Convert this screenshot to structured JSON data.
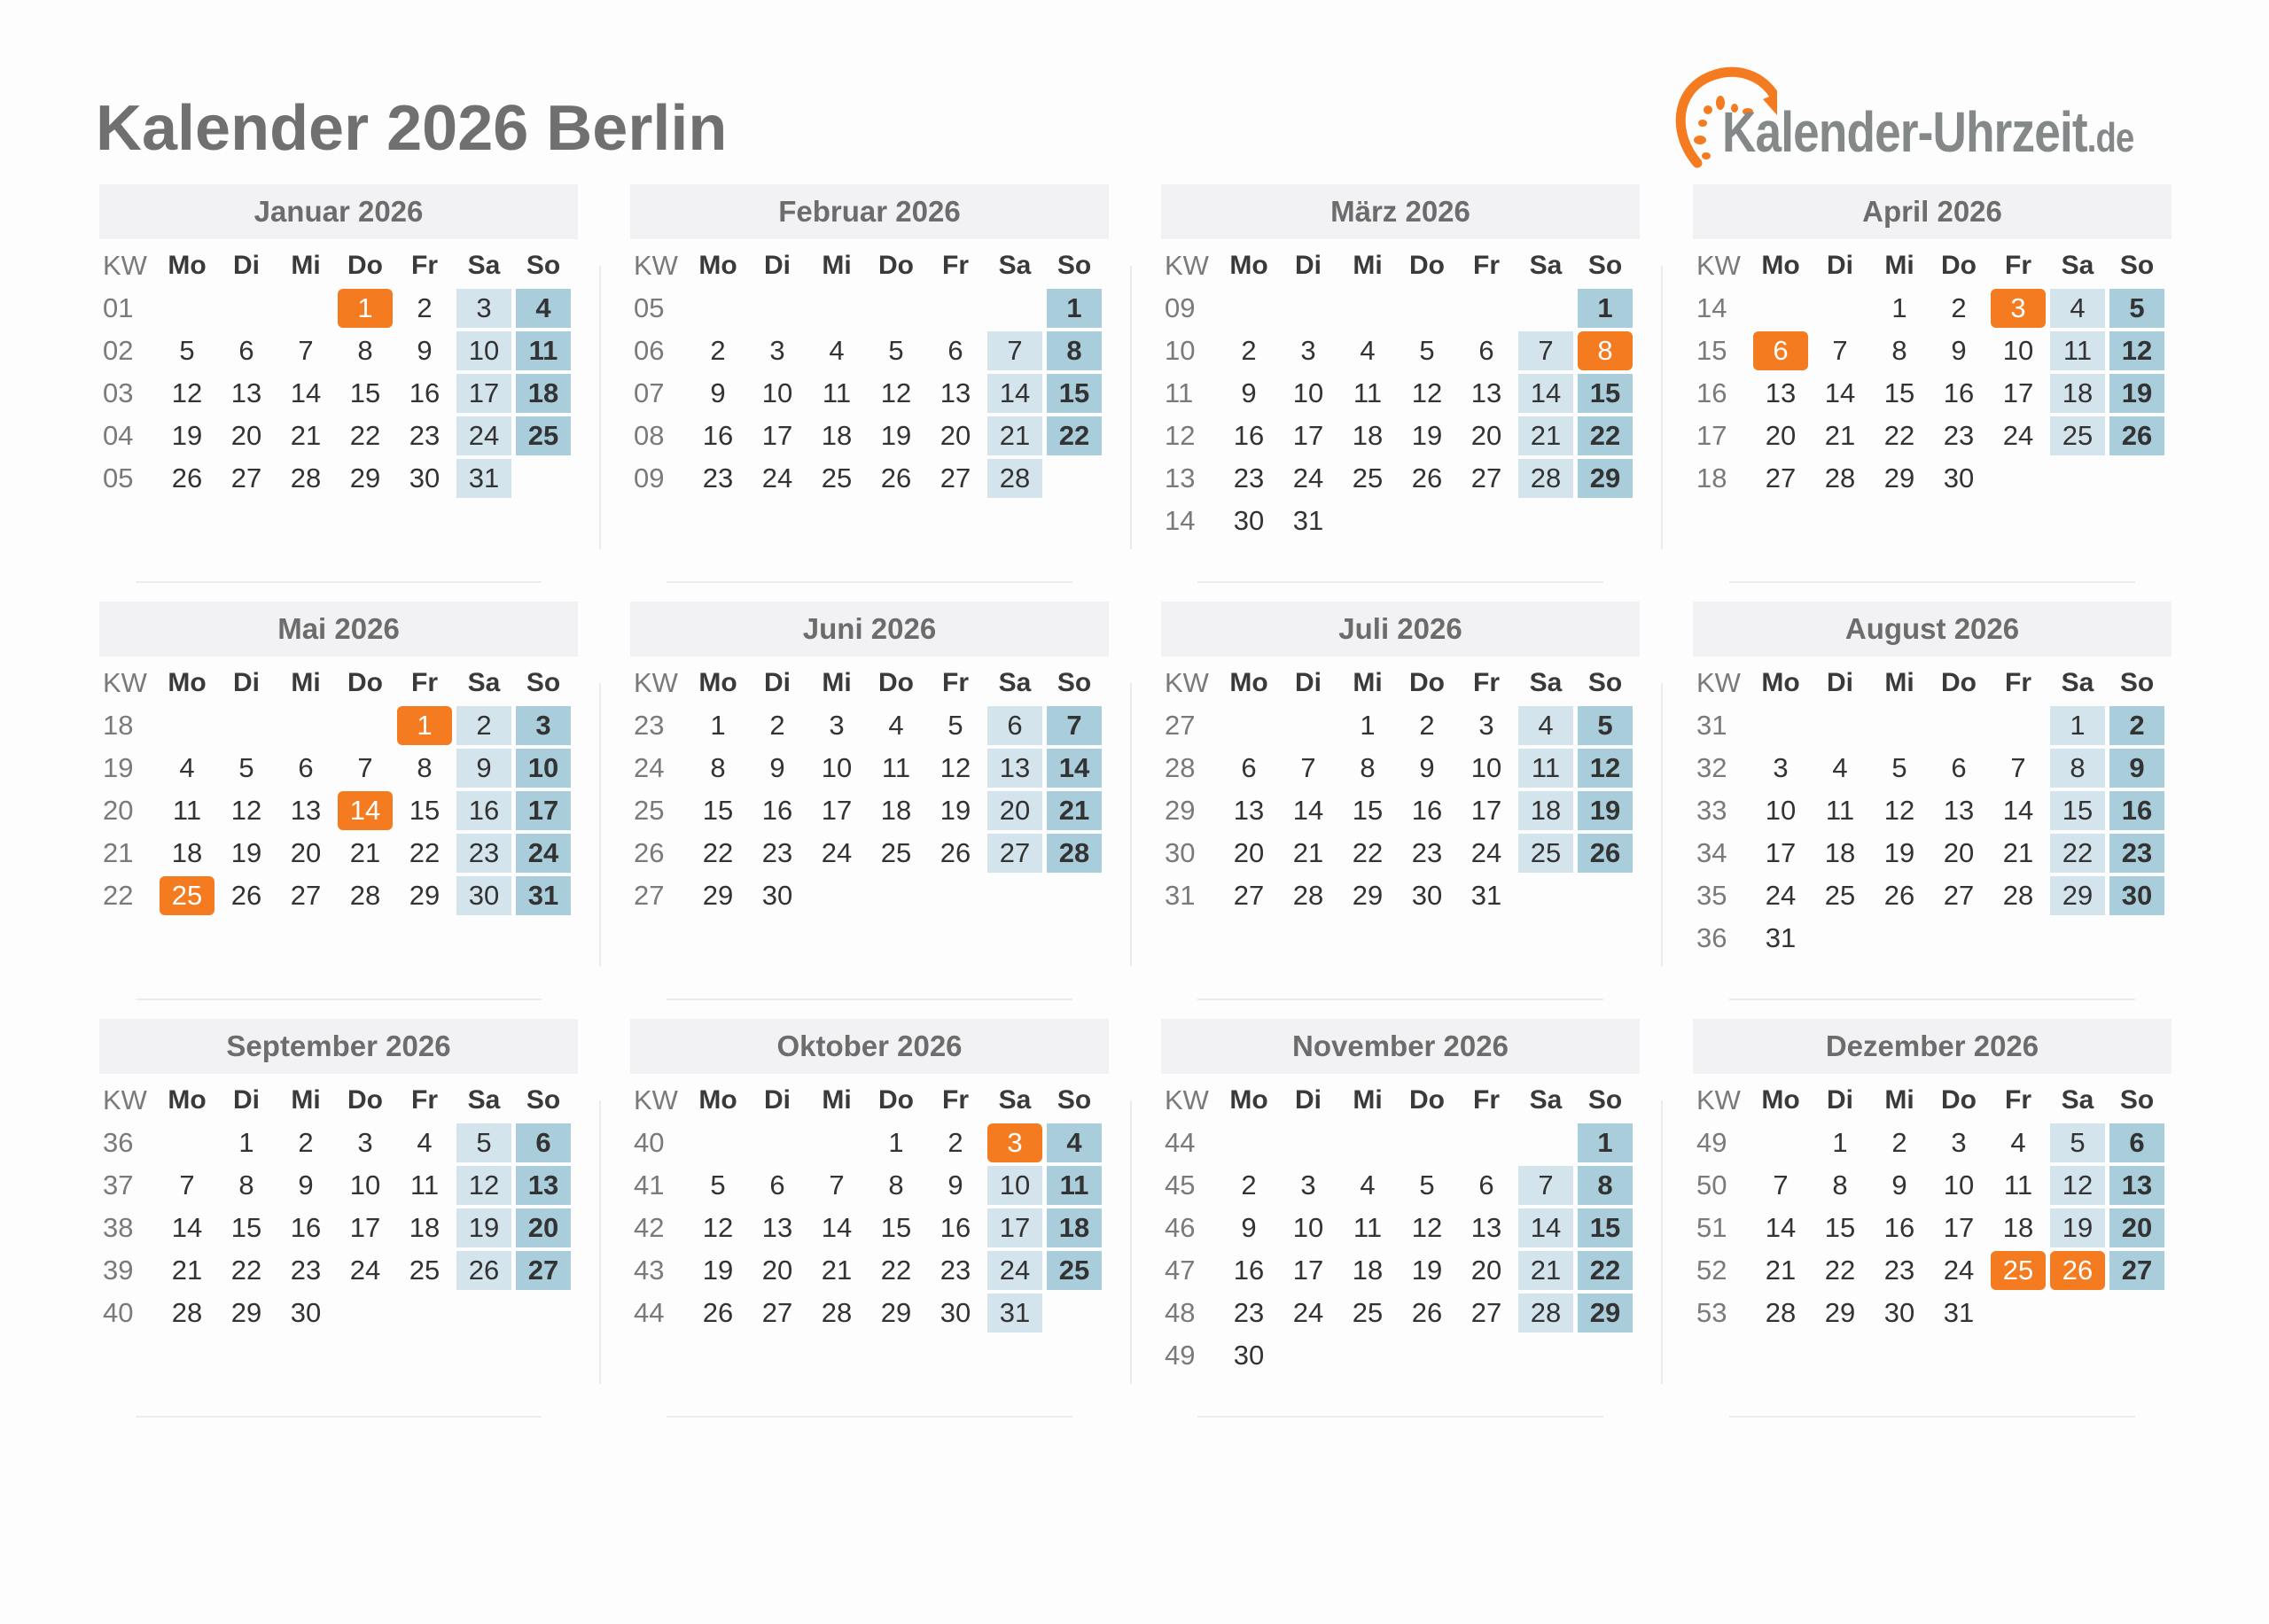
{
  "title": "Kalender 2026 Berlin",
  "logo": {
    "text": "Kalender-Uhrzeit",
    "tld": ".de"
  },
  "colors": {
    "holiday": "#f47b20",
    "saturday": "#d4e4ec",
    "sunday": "#a9cddb",
    "header_bg": "#f2f2f4"
  },
  "week_header": [
    "KW",
    "Mo",
    "Di",
    "Mi",
    "Do",
    "Fr",
    "Sa",
    "So"
  ],
  "months": [
    {
      "title": "Januar 2026",
      "start": "Do",
      "days": 31,
      "kw": [
        "01",
        "02",
        "03",
        "04",
        "05"
      ],
      "holidays": [
        1
      ]
    },
    {
      "title": "Februar 2026",
      "start": "So",
      "days": 28,
      "kw": [
        "05",
        "06",
        "07",
        "08",
        "09"
      ],
      "holidays": []
    },
    {
      "title": "März 2026",
      "start": "So",
      "days": 31,
      "kw": [
        "09",
        "10",
        "11",
        "12",
        "13",
        "14"
      ],
      "holidays": [
        8
      ]
    },
    {
      "title": "April 2026",
      "start": "Mi",
      "days": 30,
      "kw": [
        "14",
        "15",
        "16",
        "17",
        "18"
      ],
      "holidays": [
        3,
        6
      ]
    },
    {
      "title": "Mai 2026",
      "start": "Fr",
      "days": 31,
      "kw": [
        "18",
        "19",
        "20",
        "21",
        "22"
      ],
      "holidays": [
        1,
        14,
        25
      ]
    },
    {
      "title": "Juni 2026",
      "start": "Mo",
      "days": 30,
      "kw": [
        "23",
        "24",
        "25",
        "26",
        "27"
      ],
      "holidays": []
    },
    {
      "title": "Juli 2026",
      "start": "Mi",
      "days": 31,
      "kw": [
        "27",
        "28",
        "29",
        "30",
        "31"
      ],
      "holidays": []
    },
    {
      "title": "August 2026",
      "start": "Sa",
      "days": 31,
      "kw": [
        "31",
        "32",
        "33",
        "34",
        "35",
        "36"
      ],
      "holidays": []
    },
    {
      "title": "September 2026",
      "start": "Di",
      "days": 30,
      "kw": [
        "36",
        "37",
        "38",
        "39",
        "40"
      ],
      "holidays": []
    },
    {
      "title": "Oktober 2026",
      "start": "Do",
      "days": 31,
      "kw": [
        "40",
        "41",
        "42",
        "43",
        "44"
      ],
      "holidays": [
        3
      ]
    },
    {
      "title": "November 2026",
      "start": "So",
      "days": 30,
      "kw": [
        "44",
        "45",
        "46",
        "47",
        "48",
        "49"
      ],
      "holidays": []
    },
    {
      "title": "Dezember 2026",
      "start": "Di",
      "days": 31,
      "kw": [
        "49",
        "50",
        "51",
        "52",
        "53"
      ],
      "holidays": [
        25,
        26
      ]
    }
  ]
}
